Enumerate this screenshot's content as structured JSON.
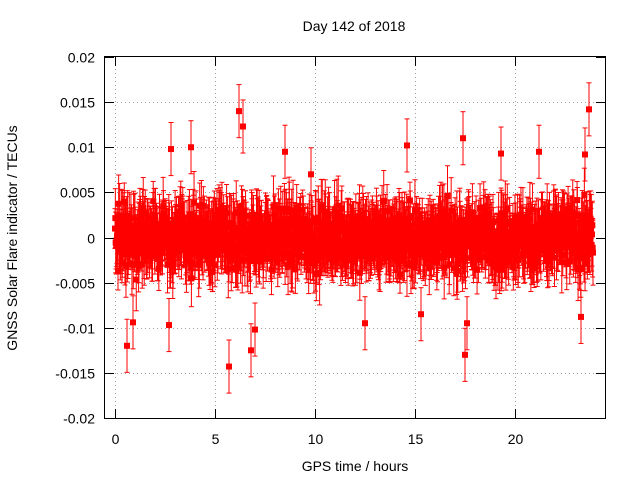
{
  "chart_data": {
    "type": "scatter",
    "title": "Day 142 of 2018",
    "xlabel": "GPS time / hours",
    "ylabel": "GNSS Solar Flare indicator / TECUs",
    "xlim": [
      -0.5,
      24.5
    ],
    "ylim": [
      -0.02,
      0.02
    ],
    "x_ticks": [
      0,
      5,
      10,
      15,
      20
    ],
    "x_tick_labels": [
      "0",
      "5",
      "10",
      "15",
      "20"
    ],
    "y_ticks": [
      -0.02,
      -0.015,
      -0.01,
      -0.005,
      0,
      0.005,
      0.01,
      0.015,
      0.02
    ],
    "y_tick_labels": [
      "-0.02",
      "-0.015",
      "-0.01",
      "-0.005",
      "0",
      "0.005",
      "0.01",
      "0.015",
      "0.02"
    ],
    "grid": true,
    "series": [
      {
        "name": "GNSS Solar Flare indicator",
        "color": "#ff0000",
        "marker": "square",
        "error_bars": true,
        "x_start": 0,
        "x_end": 23.9,
        "n_points": 1440,
        "typical_error": 0.0028,
        "bulk_range": [
          -0.007,
          0.007
        ],
        "notable_points": [
          {
            "x": 0.6,
            "y": -0.012
          },
          {
            "x": 5.7,
            "y": -0.0143
          },
          {
            "x": 6.2,
            "y": 0.014
          },
          {
            "x": 6.4,
            "y": 0.0123
          },
          {
            "x": 6.8,
            "y": -0.0125
          },
          {
            "x": 2.8,
            "y": 0.0098
          },
          {
            "x": 3.8,
            "y": 0.01
          },
          {
            "x": 7.0,
            "y": -0.0102
          },
          {
            "x": 8.5,
            "y": 0.0095
          },
          {
            "x": 12.5,
            "y": -0.0095
          },
          {
            "x": 14.6,
            "y": 0.0102
          },
          {
            "x": 17.4,
            "y": 0.011
          },
          {
            "x": 17.5,
            "y": -0.013
          },
          {
            "x": 17.6,
            "y": -0.0095
          },
          {
            "x": 19.3,
            "y": 0.0093
          },
          {
            "x": 21.2,
            "y": 0.0095
          },
          {
            "x": 23.3,
            "y": -0.0088
          },
          {
            "x": 23.7,
            "y": 0.0142
          },
          {
            "x": 23.5,
            "y": 0.0092
          },
          {
            "x": 0.9,
            "y": -0.0094
          },
          {
            "x": 2.7,
            "y": -0.0097
          },
          {
            "x": 9.8,
            "y": 0.007
          },
          {
            "x": 15.3,
            "y": -0.0085
          }
        ]
      }
    ]
  }
}
